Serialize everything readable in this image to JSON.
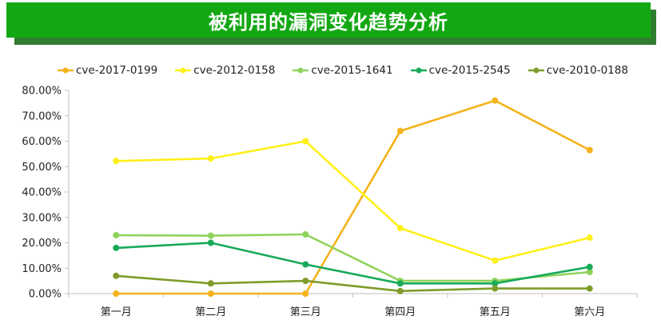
{
  "title": "被利用的漏洞变化趋势分析",
  "colors": {
    "banner": "#13a813",
    "banner_shadow": "#2f7d2f",
    "axis": "#bfbfbf"
  },
  "chart_data": {
    "type": "line",
    "title": "",
    "xlabel": "",
    "ylabel": "",
    "categories": [
      "第一月",
      "第二月",
      "第三月",
      "第四月",
      "第五月",
      "第六月"
    ],
    "ylim": [
      0,
      0.8
    ],
    "yticks": [
      0,
      0.1,
      0.2,
      0.3,
      0.4,
      0.5,
      0.6,
      0.7,
      0.8
    ],
    "ytick_labels": [
      "0.00%",
      "10.00%",
      "20.00%",
      "30.00%",
      "40.00%",
      "50.00%",
      "60.00%",
      "70.00%",
      "80.00%"
    ],
    "legend_position": "top",
    "grid": false,
    "series": [
      {
        "name": "cve-2017-0199",
        "color": "#f5b31b",
        "values": [
          0.0,
          0.0,
          0.0,
          0.64,
          0.76,
          0.565
        ]
      },
      {
        "name": "cve-2012-0158",
        "color": "#ffef1a",
        "values": [
          0.522,
          0.532,
          0.6,
          0.258,
          0.13,
          0.22
        ]
      },
      {
        "name": "cve-2015-1641",
        "color": "#8ed35a",
        "values": [
          0.23,
          0.228,
          0.233,
          0.05,
          0.05,
          0.085
        ]
      },
      {
        "name": "cve-2015-2545",
        "color": "#18aa5a",
        "values": [
          0.18,
          0.2,
          0.115,
          0.04,
          0.04,
          0.105
        ]
      },
      {
        "name": "cve-2010-0188",
        "color": "#7f9c2a",
        "values": [
          0.07,
          0.04,
          0.05,
          0.01,
          0.02,
          0.02
        ]
      }
    ]
  }
}
